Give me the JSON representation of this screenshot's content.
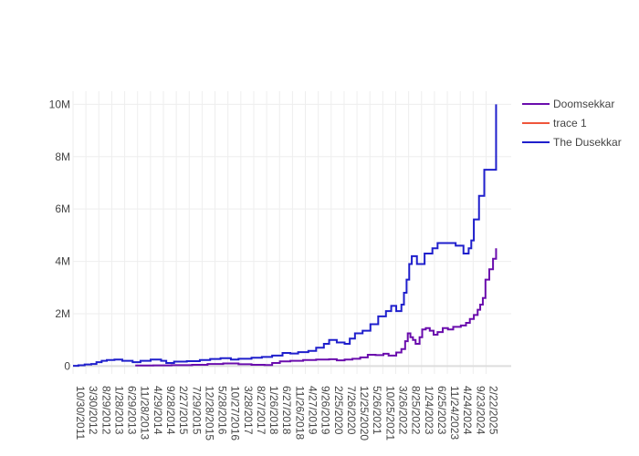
{
  "chart_data": {
    "type": "line",
    "x_axis": {
      "type": "date",
      "range": [
        "2011-10-30",
        "2025-12-15"
      ],
      "tick_labels": [
        "10/30/2011",
        "3/30/2012",
        "8/29/2012",
        "1/28/2013",
        "6/29/2013",
        "11/28/2013",
        "4/29/2014",
        "9/28/2014",
        "2/27/2015",
        "7/29/2015",
        "12/28/2015",
        "5/28/2016",
        "10/27/2016",
        "3/28/2017",
        "8/27/2017",
        "1/26/2018",
        "6/27/2018",
        "11/26/2018",
        "4/27/2019",
        "9/26/2019",
        "2/25/2020",
        "7/26/2020",
        "12/25/2020",
        "5/26/2021",
        "10/25/2021",
        "3/26/2022",
        "8/25/2022",
        "1/24/2023",
        "6/25/2023",
        "11/24/2023",
        "4/24/2024",
        "9/23/2024",
        "2/22/2025"
      ]
    },
    "y_axis": {
      "range": [
        -300000,
        10500000
      ],
      "tick_values": [
        0,
        2000000,
        4000000,
        6000000,
        8000000,
        10000000
      ],
      "tick_labels": [
        "0",
        "2M",
        "4M",
        "6M",
        "8M",
        "10M"
      ]
    },
    "grid": true,
    "legend_position": "top-right",
    "series": [
      {
        "name": "Doomsekkar",
        "color": "#6a0dad",
        "line_shape": "hv",
        "points": [
          [
            "2013-11-01",
            20000
          ],
          [
            "2014-06-01",
            25000
          ],
          [
            "2015-01-01",
            35000
          ],
          [
            "2015-09-01",
            50000
          ],
          [
            "2016-03-01",
            80000
          ],
          [
            "2016-09-01",
            100000
          ],
          [
            "2017-03-01",
            70000
          ],
          [
            "2017-08-01",
            50000
          ],
          [
            "2018-01-01",
            40000
          ],
          [
            "2018-04-01",
            120000
          ],
          [
            "2018-07-01",
            180000
          ],
          [
            "2018-11-01",
            200000
          ],
          [
            "2019-04-01",
            230000
          ],
          [
            "2019-09-01",
            250000
          ],
          [
            "2020-02-01",
            260000
          ],
          [
            "2020-05-01",
            220000
          ],
          [
            "2020-08-01",
            250000
          ],
          [
            "2020-11-01",
            280000
          ],
          [
            "2021-02-01",
            330000
          ],
          [
            "2021-05-01",
            430000
          ],
          [
            "2021-08-01",
            420000
          ],
          [
            "2021-11-01",
            470000
          ],
          [
            "2022-01-01",
            400000
          ],
          [
            "2022-04-01",
            520000
          ],
          [
            "2022-06-01",
            650000
          ],
          [
            "2022-07-15",
            950000
          ],
          [
            "2022-08-15",
            1250000
          ],
          [
            "2022-09-15",
            1100000
          ],
          [
            "2022-10-15",
            1000000
          ],
          [
            "2022-11-15",
            850000
          ],
          [
            "2023-01-01",
            1100000
          ],
          [
            "2023-02-01",
            1400000
          ],
          [
            "2023-03-15",
            1450000
          ],
          [
            "2023-05-01",
            1350000
          ],
          [
            "2023-06-15",
            1200000
          ],
          [
            "2023-08-01",
            1300000
          ],
          [
            "2023-10-01",
            1450000
          ],
          [
            "2023-12-01",
            1400000
          ],
          [
            "2024-02-01",
            1500000
          ],
          [
            "2024-05-01",
            1550000
          ],
          [
            "2024-07-01",
            1650000
          ],
          [
            "2024-08-15",
            1800000
          ],
          [
            "2024-10-01",
            1950000
          ],
          [
            "2024-11-15",
            2150000
          ],
          [
            "2024-12-15",
            2350000
          ],
          [
            "2025-01-15",
            2600000
          ],
          [
            "2025-02-15",
            3300000
          ],
          [
            "2025-04-01",
            3700000
          ],
          [
            "2025-05-15",
            4100000
          ],
          [
            "2025-06-20",
            4500000
          ]
        ]
      },
      {
        "name": "trace 1",
        "color": "#ef553b",
        "line_shape": "hv",
        "points": []
      },
      {
        "name": "The Dusekkar",
        "color": "#1f1fcc",
        "line_shape": "hv",
        "points": [
          [
            "2011-10-30",
            10000
          ],
          [
            "2012-01-01",
            30000
          ],
          [
            "2012-03-15",
            60000
          ],
          [
            "2012-06-01",
            80000
          ],
          [
            "2012-08-01",
            150000
          ],
          [
            "2012-10-01",
            200000
          ],
          [
            "2012-12-01",
            230000
          ],
          [
            "2013-03-01",
            250000
          ],
          [
            "2013-06-01",
            200000
          ],
          [
            "2013-10-01",
            150000
          ],
          [
            "2014-01-01",
            200000
          ],
          [
            "2014-05-01",
            250000
          ],
          [
            "2014-09-01",
            200000
          ],
          [
            "2014-11-01",
            120000
          ],
          [
            "2015-02-01",
            170000
          ],
          [
            "2015-07-01",
            190000
          ],
          [
            "2015-12-01",
            230000
          ],
          [
            "2016-04-01",
            270000
          ],
          [
            "2016-08-01",
            300000
          ],
          [
            "2016-12-01",
            250000
          ],
          [
            "2017-03-01",
            280000
          ],
          [
            "2017-08-01",
            320000
          ],
          [
            "2017-12-01",
            350000
          ],
          [
            "2018-04-01",
            400000
          ],
          [
            "2018-08-01",
            500000
          ],
          [
            "2018-11-01",
            480000
          ],
          [
            "2019-02-01",
            530000
          ],
          [
            "2019-06-01",
            580000
          ],
          [
            "2019-09-01",
            700000
          ],
          [
            "2019-12-01",
            850000
          ],
          [
            "2020-02-01",
            1000000
          ],
          [
            "2020-05-01",
            900000
          ],
          [
            "2020-08-01",
            850000
          ],
          [
            "2020-10-01",
            1050000
          ],
          [
            "2020-12-01",
            1250000
          ],
          [
            "2021-03-01",
            1350000
          ],
          [
            "2021-06-01",
            1600000
          ],
          [
            "2021-09-01",
            1900000
          ],
          [
            "2021-12-01",
            2100000
          ],
          [
            "2022-02-01",
            2300000
          ],
          [
            "2022-04-01",
            2100000
          ],
          [
            "2022-06-01",
            2350000
          ],
          [
            "2022-07-01",
            2800000
          ],
          [
            "2022-08-01",
            3300000
          ],
          [
            "2022-09-01",
            3900000
          ],
          [
            "2022-10-01",
            4200000
          ],
          [
            "2022-12-01",
            3900000
          ],
          [
            "2023-03-01",
            4300000
          ],
          [
            "2023-06-01",
            4500000
          ],
          [
            "2023-08-01",
            4700000
          ],
          [
            "2023-12-01",
            4700000
          ],
          [
            "2024-03-01",
            4600000
          ],
          [
            "2024-06-01",
            4300000
          ],
          [
            "2024-08-01",
            4500000
          ],
          [
            "2024-09-01",
            4800000
          ],
          [
            "2024-10-01",
            5600000
          ],
          [
            "2024-12-01",
            6500000
          ],
          [
            "2025-02-01",
            7500000
          ],
          [
            "2025-05-01",
            7500000
          ],
          [
            "2025-06-20",
            10000000
          ]
        ]
      }
    ]
  }
}
